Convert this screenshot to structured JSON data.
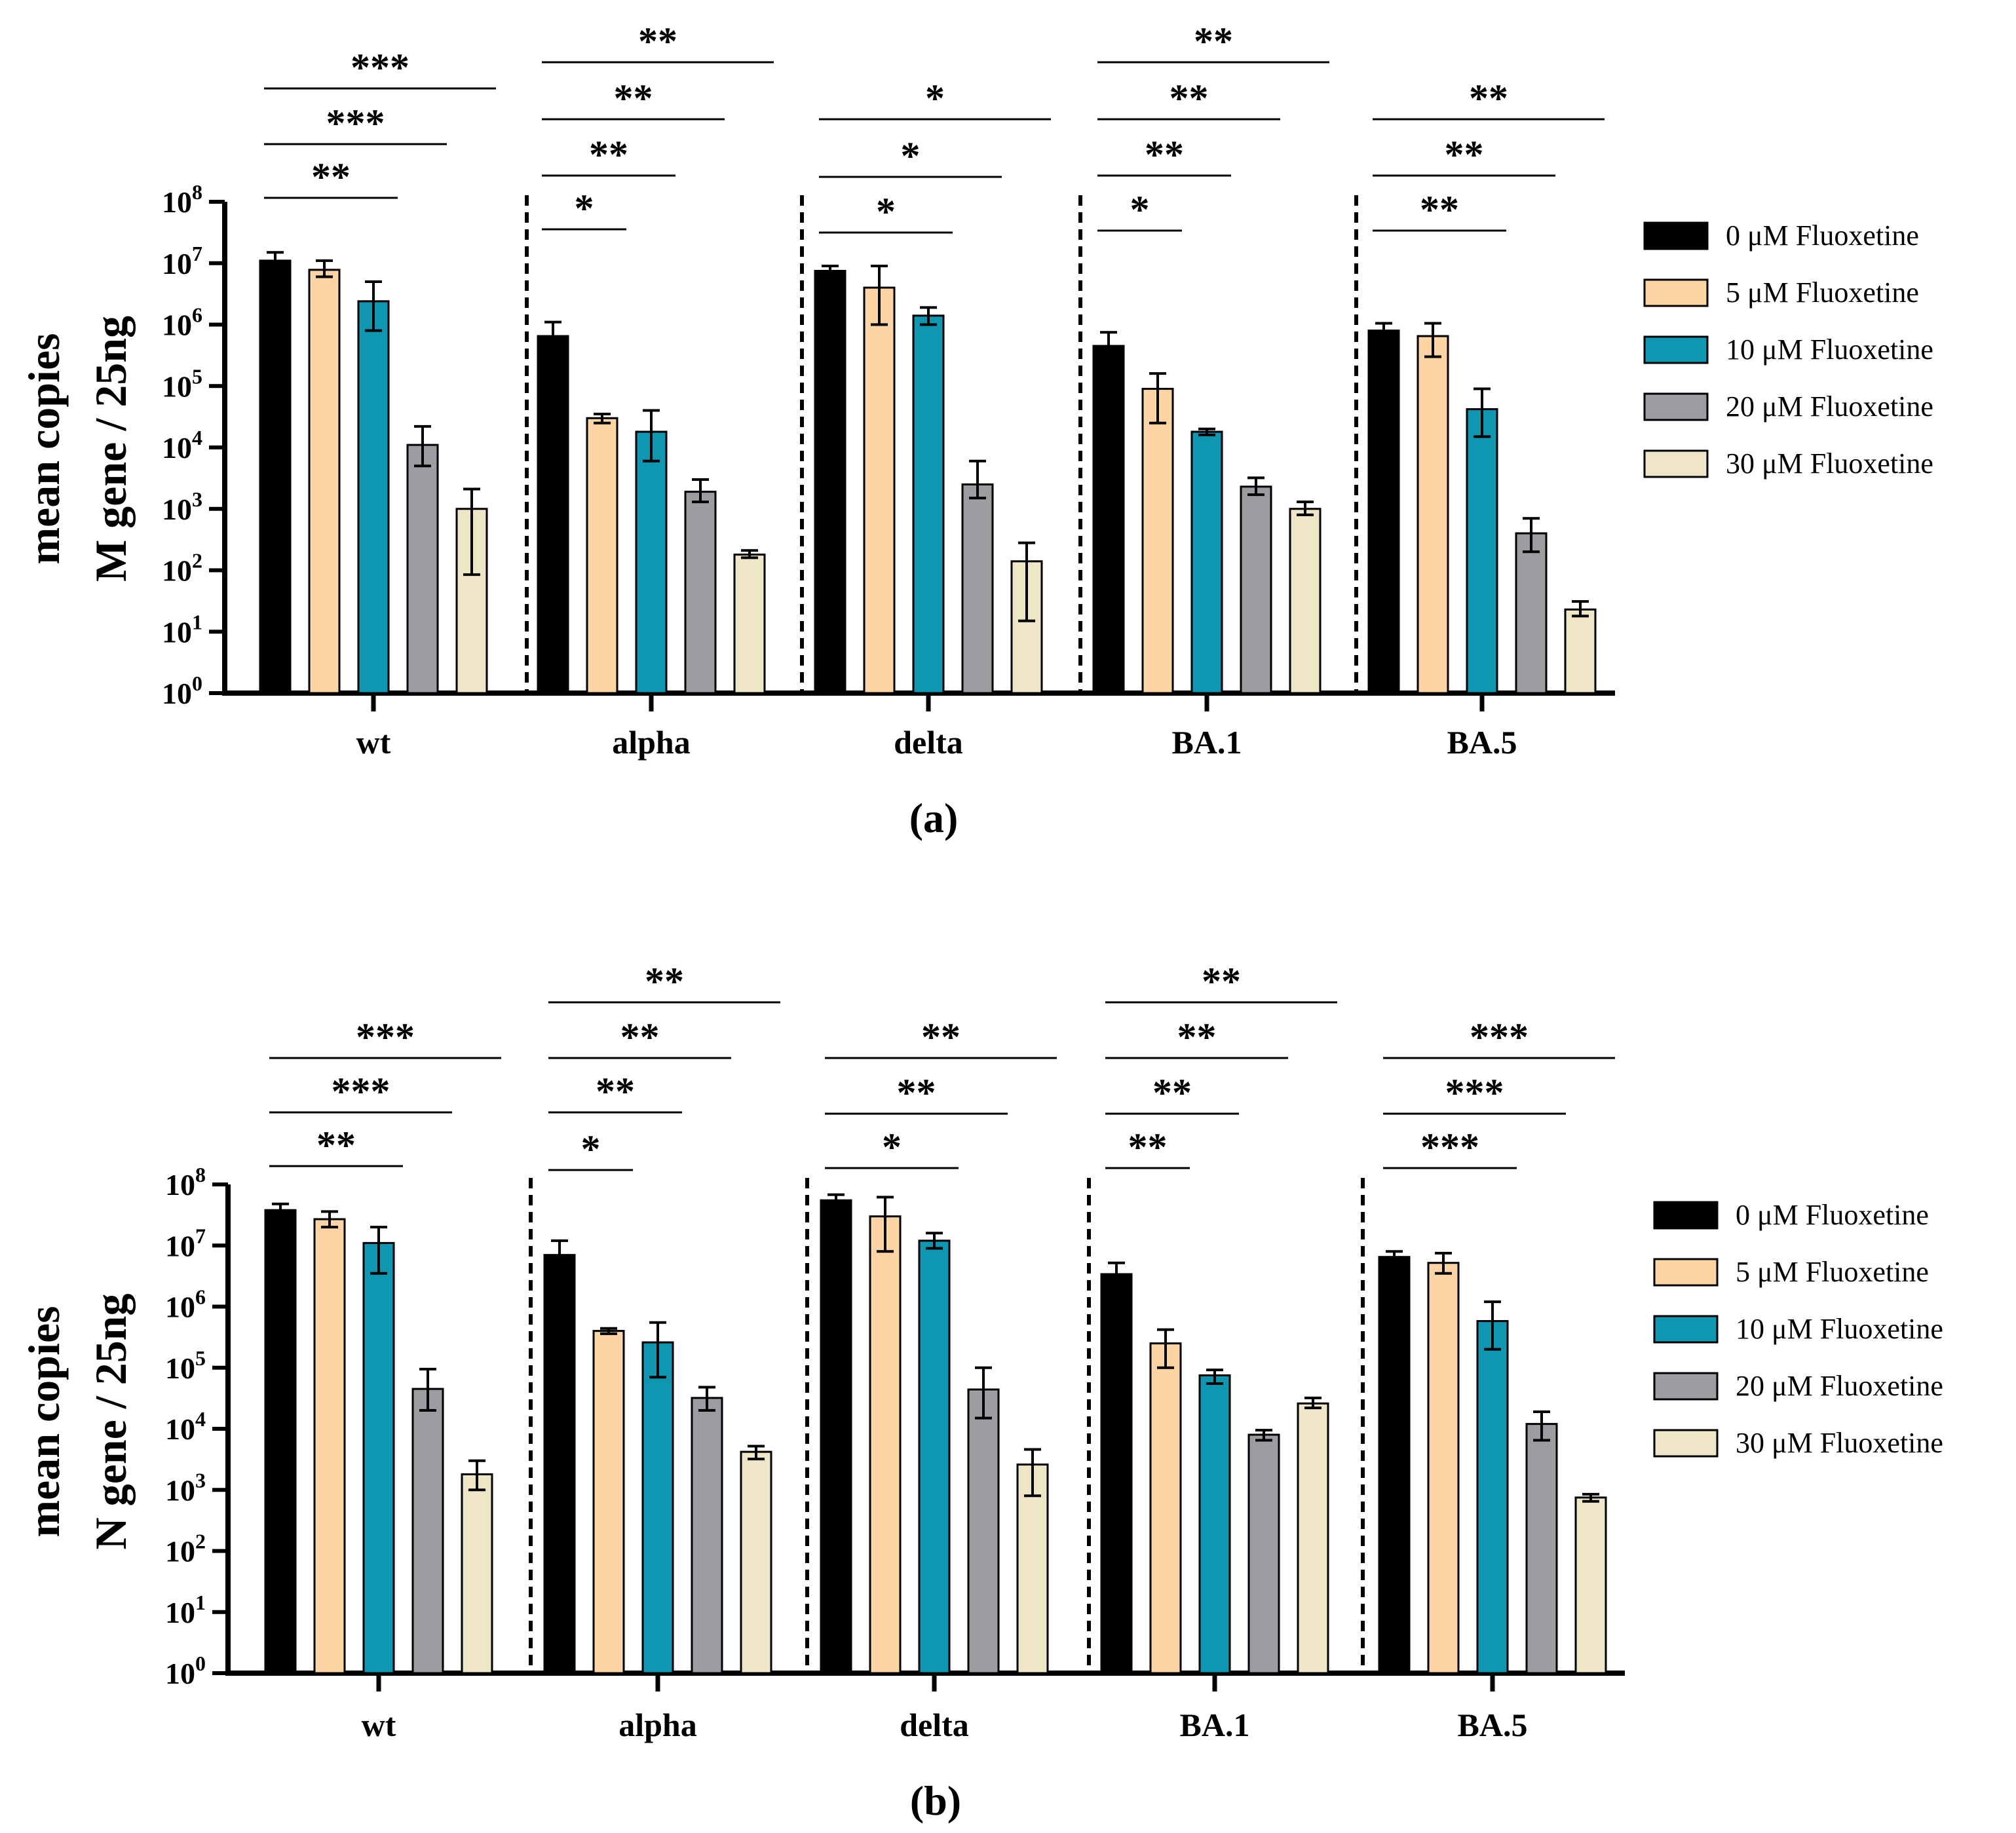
{
  "legend": [
    {
      "label": "0 μM Fluoxetine",
      "color": "#000000"
    },
    {
      "label": "5 μM Fluoxetine",
      "color": "#fdd4a4"
    },
    {
      "label": "10 μM Fluoxetine",
      "color": "#0f97b2"
    },
    {
      "label": "20 μM Fluoxetine",
      "color": "#9c9da1"
    },
    {
      "label": "30 μM Fluoxetine",
      "color": "#eee6c7"
    }
  ],
  "chart_data": [
    {
      "type": "bar",
      "panel_label": "(a)",
      "ylabel_line1": "mean copies",
      "ylabel_line2": "M gene / 25ng",
      "yscale": "log10",
      "ylim": [
        1,
        100000000
      ],
      "categories": [
        "wt",
        "alpha",
        "delta",
        "BA.1",
        "BA.5"
      ],
      "series": [
        {
          "name": "0 μM Fluoxetine",
          "values": [
            11000000,
            650000,
            7500000,
            450000,
            800000
          ],
          "err_low": [
            8500000,
            400000,
            6500000,
            300000,
            600000
          ],
          "err_high": [
            15000000,
            1100000,
            9000000,
            750000,
            1050000
          ]
        },
        {
          "name": "5 μM Fluoxetine",
          "values": [
            7800000,
            30000,
            4000000,
            90000,
            650000
          ],
          "err_low": [
            6000000,
            25000,
            1000000,
            25000,
            300000
          ],
          "err_high": [
            11000000,
            35000,
            9000000,
            160000,
            1050000
          ]
        },
        {
          "name": "10 μM Fluoxetine",
          "values": [
            2400000,
            18000,
            1400000,
            18000,
            42000
          ],
          "err_low": [
            800000,
            6000,
            1000000,
            16000,
            15000
          ],
          "err_high": [
            5000000,
            40000,
            1900000,
            20000,
            90000
          ]
        },
        {
          "name": "20 μM Fluoxetine",
          "values": [
            11000,
            1900,
            2500,
            2300,
            400
          ],
          "err_low": [
            5000,
            1300,
            1500,
            1700,
            200
          ],
          "err_high": [
            22000,
            3000,
            6000,
            3200,
            700
          ]
        },
        {
          "name": "30 μM Fluoxetine",
          "values": [
            1000,
            180,
            140,
            1000,
            23
          ],
          "err_low": [
            85,
            160,
            15,
            800,
            18
          ],
          "err_high": [
            2100,
            210,
            280,
            1300,
            31
          ]
        }
      ],
      "significance": [
        {
          "group": 0,
          "comparisons": [
            {
              "bar": 2,
              "label": "**"
            },
            {
              "bar": 3,
              "label": "***"
            },
            {
              "bar": 4,
              "label": "***"
            }
          ]
        },
        {
          "group": 1,
          "comparisons": [
            {
              "bar": 1,
              "label": "*"
            },
            {
              "bar": 2,
              "label": "**"
            },
            {
              "bar": 3,
              "label": "**"
            },
            {
              "bar": 4,
              "label": "**"
            }
          ]
        },
        {
          "group": 2,
          "comparisons": [
            {
              "bar": 2,
              "label": "*"
            },
            {
              "bar": 3,
              "label": "*"
            },
            {
              "bar": 4,
              "label": "*"
            }
          ]
        },
        {
          "group": 3,
          "comparisons": [
            {
              "bar": 1,
              "label": "*"
            },
            {
              "bar": 2,
              "label": "**"
            },
            {
              "bar": 3,
              "label": "**"
            },
            {
              "bar": 4,
              "label": "**"
            }
          ]
        },
        {
          "group": 4,
          "comparisons": [
            {
              "bar": 2,
              "label": "**"
            },
            {
              "bar": 3,
              "label": "**"
            },
            {
              "bar": 4,
              "label": "**"
            }
          ]
        }
      ]
    },
    {
      "type": "bar",
      "panel_label": "(b)",
      "ylabel_line1": "mean copies",
      "ylabel_line2": "N gene / 25ng",
      "yscale": "log10",
      "ylim": [
        1,
        100000000
      ],
      "categories": [
        "wt",
        "alpha",
        "delta",
        "BA.1",
        "BA.5"
      ],
      "series": [
        {
          "name": "0 μM Fluoxetine",
          "values": [
            38000000,
            7000000,
            55000000,
            3400000,
            6500000
          ],
          "err_low": [
            30000000,
            4500000,
            45000000,
            2500000,
            5500000
          ],
          "err_high": [
            48000000,
            12000000,
            68000000,
            5200000,
            8000000
          ]
        },
        {
          "name": "5 μM Fluoxetine",
          "values": [
            27000000,
            400000,
            30000000,
            250000,
            5200000
          ],
          "err_low": [
            20000000,
            360000,
            8000000,
            100000,
            3500000
          ],
          "err_high": [
            36000000,
            440000,
            62000000,
            420000,
            7500000
          ]
        },
        {
          "name": "10 μM Fluoxetine",
          "values": [
            11000000,
            260000,
            12000000,
            75000,
            580000
          ],
          "err_low": [
            3500000,
            70000,
            9000000,
            55000,
            200000
          ],
          "err_high": [
            20000000,
            550000,
            16000000,
            92000,
            1200000
          ]
        },
        {
          "name": "20 μM Fluoxetine",
          "values": [
            45000,
            32000,
            44000,
            8000,
            12000
          ],
          "err_low": [
            20000,
            20000,
            15000,
            6500,
            6500
          ],
          "err_high": [
            95000,
            48000,
            100000,
            9500,
            19000
          ]
        },
        {
          "name": "30 μM Fluoxetine",
          "values": [
            1800,
            4200,
            2600,
            26000,
            750
          ],
          "err_low": [
            1000,
            3200,
            800,
            22000,
            650
          ],
          "err_high": [
            3000,
            5200,
            4600,
            32000,
            850
          ]
        }
      ],
      "significance": [
        {
          "group": 0,
          "comparisons": [
            {
              "bar": 2,
              "label": "**"
            },
            {
              "bar": 3,
              "label": "***"
            },
            {
              "bar": 4,
              "label": "***"
            }
          ]
        },
        {
          "group": 1,
          "comparisons": [
            {
              "bar": 1,
              "label": "*"
            },
            {
              "bar": 2,
              "label": "**"
            },
            {
              "bar": 3,
              "label": "**"
            },
            {
              "bar": 4,
              "label": "**"
            }
          ]
        },
        {
          "group": 2,
          "comparisons": [
            {
              "bar": 2,
              "label": "*"
            },
            {
              "bar": 3,
              "label": "**"
            },
            {
              "bar": 4,
              "label": "**"
            }
          ]
        },
        {
          "group": 3,
          "comparisons": [
            {
              "bar": 1,
              "label": "**"
            },
            {
              "bar": 2,
              "label": "**"
            },
            {
              "bar": 3,
              "label": "**"
            },
            {
              "bar": 4,
              "label": "**"
            }
          ]
        },
        {
          "group": 4,
          "comparisons": [
            {
              "bar": 2,
              "label": "***"
            },
            {
              "bar": 3,
              "label": "***"
            },
            {
              "bar": 4,
              "label": "***"
            }
          ]
        }
      ]
    }
  ]
}
